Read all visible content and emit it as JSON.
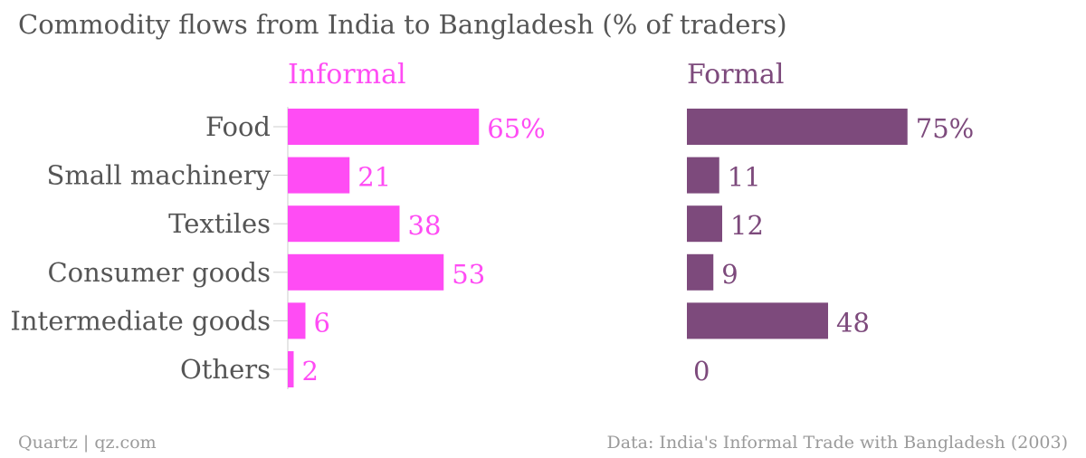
{
  "title": "Commodity flows from India to Bangladesh (% of traders)",
  "footer": {
    "source_left": "Quartz | qz.com",
    "source_right": "Data: India's Informal Trade with Bangladesh (2003)"
  },
  "colors": {
    "informal": "#ff4cf4",
    "formal": "#7d4a7c",
    "text": "#555555",
    "axis": "#cccccc"
  },
  "chart_data": {
    "type": "bar",
    "orientation": "horizontal",
    "categories": [
      "Food",
      "Small machinery",
      "Textiles",
      "Consumer goods",
      "Intermediate goods",
      "Others"
    ],
    "series": [
      {
        "name": "Informal",
        "values": [
          65,
          21,
          38,
          53,
          6,
          2
        ],
        "labels": [
          "65%",
          "21",
          "38",
          "53",
          "6",
          "2"
        ]
      },
      {
        "name": "Formal",
        "values": [
          75,
          11,
          12,
          9,
          48,
          0
        ],
        "labels": [
          "75%",
          "11",
          "12",
          "9",
          "48",
          "0"
        ]
      }
    ],
    "xlim": [
      0,
      100
    ],
    "grid": false,
    "legend": "panel titles"
  }
}
